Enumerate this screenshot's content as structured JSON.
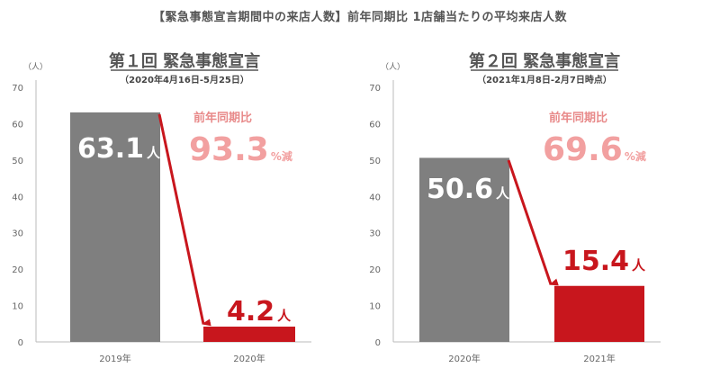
{
  "header": {
    "title": "【緊急事態宣言期間中の来店人数】前年同期比 1店舗当たりの平均来店人数"
  },
  "colors": {
    "prior_bar": "#7f7f7f",
    "current_bar": "#c8161d",
    "arrow": "#c8161d",
    "change_text": "#f2a0a0",
    "axis_text": "#666666"
  },
  "chart_data": [
    {
      "type": "bar",
      "title": "第１回 緊急事態宣言",
      "subtitle": "（2020年4月16日-5月25日）",
      "ylabel": "（人）",
      "ylim": [
        0,
        70
      ],
      "yticks": [
        "0",
        "10",
        "20",
        "30",
        "40",
        "50",
        "60",
        "70"
      ],
      "categories": [
        "2019年",
        "2020年"
      ],
      "values": [
        63.1,
        4.2
      ],
      "value_labels": [
        "63.1",
        "4.2"
      ],
      "value_unit": "人",
      "change": {
        "label": "前年同期比",
        "value": "93.3",
        "suffix": "%減"
      }
    },
    {
      "type": "bar",
      "title": "第２回 緊急事態宣言",
      "subtitle": "（2021年1月8日-2月7日時点）",
      "ylabel": "（人）",
      "ylim": [
        0,
        70
      ],
      "yticks": [
        "0",
        "10",
        "20",
        "30",
        "40",
        "50",
        "60",
        "70"
      ],
      "categories": [
        "2020年",
        "2021年"
      ],
      "values": [
        50.6,
        15.4
      ],
      "value_labels": [
        "50.6",
        "15.4"
      ],
      "value_unit": "人",
      "change": {
        "label": "前年同期比",
        "value": "69.6",
        "suffix": "%減"
      }
    }
  ]
}
